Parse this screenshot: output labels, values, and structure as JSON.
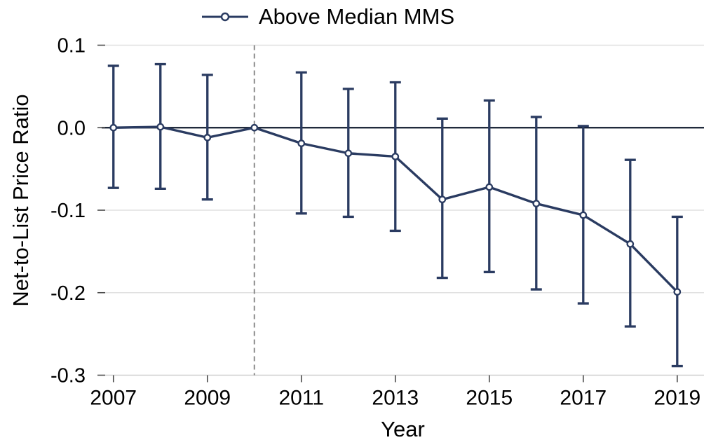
{
  "figure": {
    "background": "#ffffff"
  },
  "legend": {
    "label": "Above Median MMS"
  },
  "axes": {
    "x_title": "Year",
    "y_title": "Net-to-List Price Ratio"
  },
  "chart_data": {
    "type": "line",
    "title": "",
    "xlabel": "Year",
    "ylabel": "Net-to-List Price Ratio",
    "legend_entries": [
      "Above Median MMS"
    ],
    "legend_position": "top-center",
    "grid": "horizontal",
    "error_bars": true,
    "x_ticks": [
      2007,
      2009,
      2011,
      2013,
      2015,
      2017,
      2019
    ],
    "y_ticks": [
      0.1,
      0.0,
      -0.1,
      -0.2,
      -0.3
    ],
    "xlim": [
      2006.75,
      2019.57
    ],
    "ylim": [
      -0.3,
      0.1
    ],
    "zero_line": 0.0,
    "reference_line_x": 2010,
    "series": [
      {
        "name": "Above Median MMS",
        "points": [
          {
            "year": 2007,
            "estimate": 0.0,
            "ci_low": -0.073,
            "ci_high": 0.075
          },
          {
            "year": 2008,
            "estimate": 0.001,
            "ci_low": -0.074,
            "ci_high": 0.077
          },
          {
            "year": 2009,
            "estimate": -0.012,
            "ci_low": -0.087,
            "ci_high": 0.064
          },
          {
            "year": 2010,
            "estimate": 0.0,
            "ci_low": null,
            "ci_high": null
          },
          {
            "year": 2011,
            "estimate": -0.019,
            "ci_low": -0.104,
            "ci_high": 0.067
          },
          {
            "year": 2012,
            "estimate": -0.031,
            "ci_low": -0.108,
            "ci_high": 0.047
          },
          {
            "year": 2013,
            "estimate": -0.035,
            "ci_low": -0.125,
            "ci_high": 0.055
          },
          {
            "year": 2014,
            "estimate": -0.087,
            "ci_low": -0.182,
            "ci_high": 0.011
          },
          {
            "year": 2015,
            "estimate": -0.072,
            "ci_low": -0.175,
            "ci_high": 0.033
          },
          {
            "year": 2016,
            "estimate": -0.092,
            "ci_low": -0.196,
            "ci_high": 0.013
          },
          {
            "year": 2017,
            "estimate": -0.106,
            "ci_low": -0.213,
            "ci_high": 0.002
          },
          {
            "year": 2018,
            "estimate": -0.141,
            "ci_low": -0.241,
            "ci_high": -0.039
          },
          {
            "year": 2019,
            "estimate": -0.199,
            "ci_low": -0.289,
            "ci_high": -0.108
          }
        ]
      }
    ],
    "colors": {
      "series": "#2a3b61",
      "zero_line": "#111b2e",
      "gridline": "#e0e0e0",
      "axis_line": "#cfcfcf",
      "tick_mark": "#4a4a4a",
      "reference_dashed": "#8a8a8a",
      "text": "#000000",
      "marker_fill": "#ffffff"
    }
  }
}
